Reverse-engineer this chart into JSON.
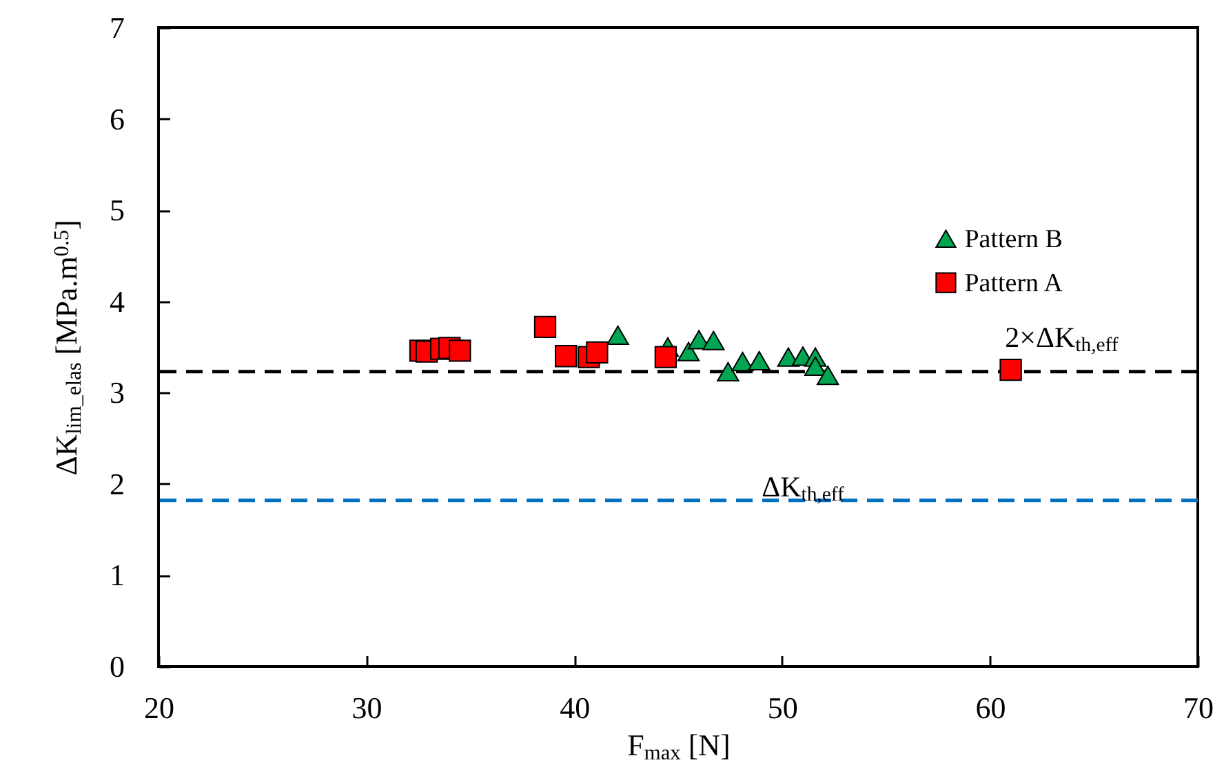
{
  "chart_data": {
    "type": "scatter",
    "xlabel": "F$_{max}$ [N]",
    "ylabel": "ΔK$_{lim_elas}$ [MPa.m$^{0.5}$]",
    "xlim": [
      20,
      70
    ],
    "xticks": [
      20,
      30,
      40,
      50,
      60,
      70
    ],
    "ylim": [
      0,
      7
    ],
    "yticks": [
      0,
      1,
      2,
      3,
      4,
      5,
      6,
      7
    ],
    "legend": "top right",
    "series": [
      {
        "name": "Pattern B",
        "color": "#00a651",
        "marker": "triangle",
        "x": [
          42.1,
          44.5,
          45.5,
          46.0,
          46.7,
          47.4,
          48.1,
          48.9,
          50.3,
          51.0,
          51.6,
          51.6,
          52.2
        ],
        "values": [
          3.63,
          3.5,
          3.45,
          3.58,
          3.57,
          3.23,
          3.34,
          3.35,
          3.39,
          3.4,
          3.39,
          3.29,
          3.19
        ]
      },
      {
        "name": "Pattern A",
        "color": "#ff0000",
        "marker": "square",
        "x": [
          32.6,
          32.9,
          33.6,
          34.0,
          34.5,
          38.6,
          39.6,
          40.7,
          41.1,
          44.4,
          61.0
        ],
        "values": [
          3.46,
          3.45,
          3.48,
          3.49,
          3.46,
          3.72,
          3.4,
          3.39,
          3.44,
          3.39,
          3.25
        ]
      }
    ],
    "ref_lines": [
      {
        "axis": "y",
        "value": 3.23,
        "color": "#000000",
        "line_style": "dashed",
        "label": "2×ΔK$_{th,eff}$"
      },
      {
        "axis": "y",
        "value": 1.82,
        "color": "#0070c0",
        "line_style": "dashed",
        "label": "ΔK$_{th,eff}$"
      }
    ]
  }
}
